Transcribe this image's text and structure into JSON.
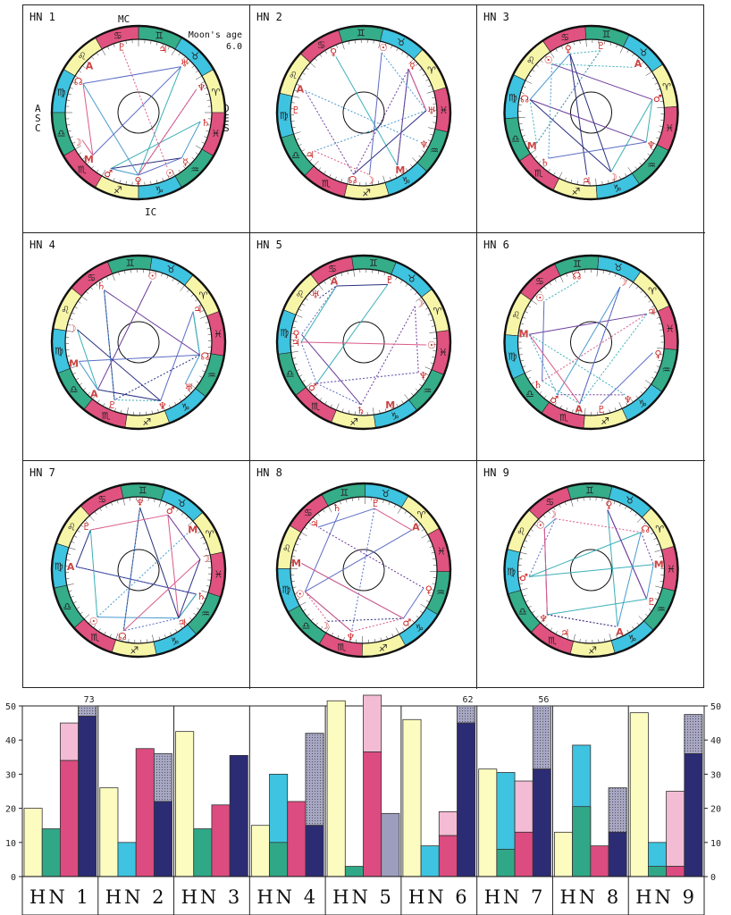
{
  "charts": [
    {
      "label": "HN 1",
      "moon_label": "Moon's age",
      "moon_value": "6.0",
      "axes": {
        "mc": "MC",
        "asc": "ASC",
        "des": "DES",
        "ic": "IC"
      },
      "planets": [
        [
          "☽",
          "#c22"
        ],
        [
          "M",
          "#c44"
        ],
        [
          "♂",
          "#c22"
        ],
        [
          "♀",
          "#c22"
        ],
        [
          "☉",
          "#c22"
        ],
        [
          "☿",
          "#c22"
        ],
        [
          "♄",
          "#c22"
        ],
        [
          "♆",
          "#c22"
        ],
        [
          "♅",
          "#c22"
        ],
        [
          "♃",
          "#c22"
        ],
        [
          "♇",
          "#c22"
        ],
        [
          "A",
          "#c44"
        ],
        [
          "☊",
          "#c22"
        ]
      ],
      "colors": [
        "#c9d4a0",
        "#5c6cc4",
        "#da5a8a",
        "#3ab0b8",
        "#2a2e80"
      ]
    },
    {
      "label": "HN 2",
      "planets": [
        [
          "☽",
          "#c22"
        ],
        [
          "M",
          "#c44"
        ],
        [
          "♆",
          "#c22"
        ],
        [
          "♅",
          "#c22"
        ],
        [
          "☿",
          "#c22"
        ],
        [
          "☉",
          "#c22"
        ],
        [
          "♀",
          "#c22"
        ],
        [
          "A",
          "#c44"
        ],
        [
          "♇",
          "#c22"
        ],
        [
          "♃",
          "#c22"
        ],
        [
          "☊",
          "#c22"
        ]
      ]
    },
    {
      "label": "HN 3",
      "planets": [
        [
          "♂",
          "#c22"
        ],
        [
          "A",
          "#c44"
        ],
        [
          "♇",
          "#c22"
        ],
        [
          "♀",
          "#c22"
        ],
        [
          "☉",
          "#c22"
        ],
        [
          "☊",
          "#c22"
        ],
        [
          "M",
          "#c44"
        ],
        [
          "♄",
          "#c22"
        ],
        [
          "♃",
          "#c22"
        ],
        [
          "☽",
          "#c22"
        ],
        [
          "♆",
          "#c22"
        ]
      ]
    },
    {
      "label": "HN 4",
      "planets": [
        [
          "☉",
          "#c22"
        ],
        [
          "♄",
          "#c22"
        ],
        [
          "☽",
          "#c22"
        ],
        [
          "M",
          "#c44"
        ],
        [
          "A",
          "#c44"
        ],
        [
          "♇",
          "#c22"
        ],
        [
          "♆",
          "#c22"
        ],
        [
          "♅",
          "#c22"
        ],
        [
          "☊",
          "#c22"
        ],
        [
          "♃",
          "#c22"
        ]
      ]
    },
    {
      "label": "HN 5",
      "planets": [
        [
          "♀",
          "#c22"
        ],
        [
          "♂",
          "#c22"
        ],
        [
          "♄",
          "#c22"
        ],
        [
          "M",
          "#c44"
        ],
        [
          "♆",
          "#c22"
        ],
        [
          "☉",
          "#c22"
        ],
        [
          "☽",
          "#c22"
        ],
        [
          "♇",
          "#c22"
        ],
        [
          "A",
          "#c44"
        ],
        [
          "♅",
          "#c22"
        ],
        [
          "♃",
          "#c22"
        ]
      ]
    },
    {
      "label": "HN 6",
      "planets": [
        [
          "♂",
          "#c22"
        ],
        [
          "A",
          "#c44"
        ],
        [
          "♇",
          "#c22"
        ],
        [
          "♆",
          "#c22"
        ],
        [
          "♀",
          "#c22"
        ],
        [
          "♃",
          "#c22"
        ],
        [
          "☽",
          "#c22"
        ],
        [
          "☊",
          "#c22"
        ],
        [
          "☉",
          "#c22"
        ],
        [
          "M",
          "#c44"
        ],
        [
          "♄",
          "#c22"
        ]
      ]
    },
    {
      "label": "HN 7",
      "planets": [
        [
          "♄",
          "#c22"
        ],
        [
          "☽",
          "#c22"
        ],
        [
          "M",
          "#c44"
        ],
        [
          "♂",
          "#c22"
        ],
        [
          "♆",
          "#c22"
        ],
        [
          "♇",
          "#c22"
        ],
        [
          "A",
          "#c44"
        ],
        [
          "☉",
          "#c22"
        ],
        [
          "☊",
          "#c22"
        ],
        [
          "♃",
          "#c22"
        ]
      ]
    },
    {
      "label": "HN 8",
      "planets": [
        [
          "A",
          "#c44"
        ],
        [
          "♇",
          "#c22"
        ],
        [
          "♄",
          "#c22"
        ],
        [
          "♃",
          "#c22"
        ],
        [
          "M",
          "#c44"
        ],
        [
          "☉",
          "#c22"
        ],
        [
          "☽",
          "#c22"
        ],
        [
          "♆",
          "#c22"
        ],
        [
          "♂",
          "#c22"
        ],
        [
          "♀",
          "#c22"
        ]
      ]
    },
    {
      "label": "HN 9",
      "planets": [
        [
          "☉",
          "#c22"
        ],
        [
          "♂",
          "#c22"
        ],
        [
          "♆",
          "#c22"
        ],
        [
          "♃",
          "#c22"
        ],
        [
          "A",
          "#c44"
        ],
        [
          "♇",
          "#c22"
        ],
        [
          "M",
          "#c44"
        ],
        [
          "☊",
          "#c22"
        ],
        [
          "♀",
          "#c22"
        ],
        [
          "☽",
          "#c22"
        ]
      ]
    }
  ],
  "chart_data": {
    "type": "bar",
    "categories": [
      "HN 1",
      "HN 2",
      "HN 3",
      "HN 4",
      "HN 5",
      "HN 6",
      "HN 7",
      "HN 8",
      "HN 9"
    ],
    "ylim": [
      0,
      50
    ],
    "yticks": [
      "0",
      "10",
      "20",
      "30",
      "40",
      "50"
    ],
    "colors": {
      "yellow": "#fdfcc0",
      "cyan": "#3ec3e0",
      "green": "#30a887",
      "red": "#dc4c80",
      "pink": "#f3bcd4",
      "navy": "#2c2c74",
      "grey": "#9d9dbe"
    },
    "bars": [
      [
        {
          "c": "yellow",
          "v": 20
        },
        {
          "c": "green",
          "v": 14
        },
        {
          "c": "red",
          "v": 34,
          "top": 45,
          "tc": "pink"
        },
        {
          "c": "navy",
          "v": 47,
          "top": 50,
          "tc": "grey",
          "over": "73"
        }
      ],
      [
        {
          "c": "yellow",
          "v": 26
        },
        {
          "c": "cyan",
          "v": 10
        },
        {
          "c": "red",
          "v": 37.5
        },
        {
          "c": "navy",
          "v": 22,
          "top": 36,
          "tc": "grey"
        }
      ],
      [
        {
          "c": "yellow",
          "v": 42.5
        },
        {
          "c": "green",
          "v": 14
        },
        {
          "c": "red",
          "v": 21
        },
        {
          "c": "navy",
          "v": 35.5
        }
      ],
      [
        {
          "c": "yellow",
          "v": 15
        },
        {
          "c": "cyan",
          "v": 30,
          "inner": 10,
          "ic": "green"
        },
        {
          "c": "red",
          "v": 22
        },
        {
          "c": "navy",
          "v": 15,
          "top": 42,
          "tc": "grey"
        }
      ],
      [
        {
          "c": "yellow",
          "v": 51.5
        },
        {
          "c": "green",
          "v": 3
        },
        {
          "c": "red",
          "v": 36.5,
          "top": 54.5,
          "tc": "pink"
        },
        {
          "c": "grey",
          "v": 18.5
        }
      ],
      [
        {
          "c": "yellow",
          "v": 46
        },
        {
          "c": "cyan",
          "v": 9
        },
        {
          "c": "red",
          "v": 12,
          "top": 19,
          "tc": "pink"
        },
        {
          "c": "navy",
          "v": 45,
          "top": 50,
          "tc": "grey",
          "over": "62"
        }
      ],
      [
        {
          "c": "yellow",
          "v": 31.5
        },
        {
          "c": "cyan",
          "v": 30.5,
          "inner": 8,
          "ic": "green"
        },
        {
          "c": "red",
          "v": 13,
          "top": 28,
          "tc": "pink"
        },
        {
          "c": "navy",
          "v": 31.5,
          "top": 50,
          "tc": "grey",
          "over": "56"
        }
      ],
      [
        {
          "c": "yellow",
          "v": 13
        },
        {
          "c": "cyan",
          "v": 38.5,
          "inner": 20.5,
          "ic": "green"
        },
        {
          "c": "red",
          "v": 9
        },
        {
          "c": "navy",
          "v": 13,
          "top": 26,
          "tc": "grey"
        }
      ],
      [
        {
          "c": "yellow",
          "v": 48
        },
        {
          "c": "cyan",
          "v": 10,
          "inner": 3,
          "ic": "green"
        },
        {
          "c": "red",
          "v": 3,
          "top": 25,
          "tc": "pink"
        },
        {
          "c": "navy",
          "v": 36,
          "top": 47.5,
          "tc": "grey"
        }
      ]
    ]
  }
}
